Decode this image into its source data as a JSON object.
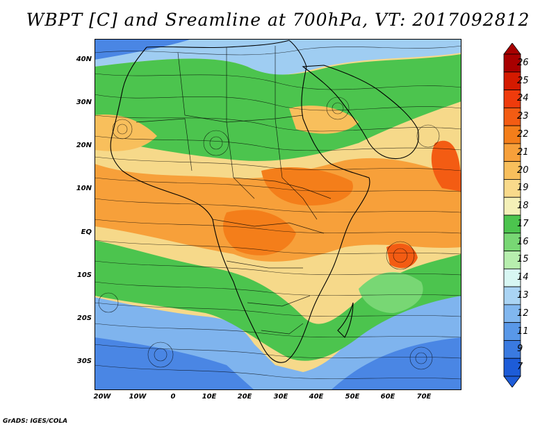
{
  "title": "WBPT [C] and Sreamline at 700hPa, VT: 2017092812",
  "credit": "GrADS: IGES/COLA",
  "map": {
    "lat_ticks": [
      "40N",
      "30N",
      "20N",
      "10N",
      "EQ",
      "10S",
      "20S",
      "30S"
    ],
    "lon_ticks": [
      "20W",
      "10W",
      "0",
      "10E",
      "20E",
      "30E",
      "40E",
      "50E",
      "60E",
      "70E"
    ],
    "base_color": "#f6d98a"
  },
  "colorbar": {
    "labels": [
      "26",
      "25",
      "24",
      "23",
      "22",
      "21",
      "20",
      "19",
      "18",
      "17",
      "16",
      "15",
      "14",
      "13",
      "12",
      "11",
      "9",
      "7"
    ],
    "colors": [
      "#a80000",
      "#d41a00",
      "#ef3b0c",
      "#f35c13",
      "#f47e1a",
      "#f7a03a",
      "#f8bf5c",
      "#f9da8b",
      "#f4f0b8",
      "#4cc44e",
      "#78d774",
      "#b7eeae",
      "#d8f7f3",
      "#aad4f4",
      "#81b7ef",
      "#5998e8",
      "#3a7ae0",
      "#1d5cd8"
    ]
  }
}
